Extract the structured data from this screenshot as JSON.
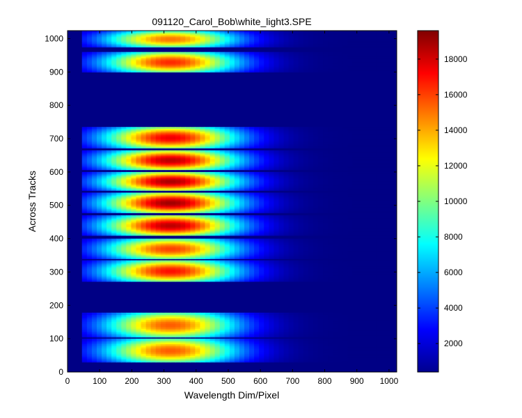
{
  "chart_data": {
    "type": "heatmap",
    "title": "091120_Carol_Bob\\white_light3.SPE",
    "xlabel": "Wavelength Dim/Pixel",
    "ylabel": "Across Tracks",
    "xlim": [
      0,
      1024
    ],
    "ylim": [
      0,
      1024
    ],
    "x_ticks": [
      0,
      100,
      200,
      300,
      400,
      500,
      600,
      700,
      800,
      900,
      1000
    ],
    "y_ticks": [
      0,
      100,
      200,
      300,
      400,
      500,
      600,
      700,
      800,
      900,
      1000
    ],
    "colormap": "jet",
    "colorbar": {
      "range": [
        400,
        19600
      ],
      "ticks": [
        2000,
        4000,
        6000,
        8000,
        10000,
        12000,
        14000,
        16000,
        18000
      ]
    },
    "background_value": 500,
    "signal_x_range": [
      45,
      1024
    ],
    "peak_x": 320,
    "tracks": [
      {
        "y_start": 30,
        "y_end": 100,
        "peak": 15500
      },
      {
        "y_start": 105,
        "y_end": 178,
        "peak": 15500
      },
      {
        "y_start": 272,
        "y_end": 335,
        "peak": 17000
      },
      {
        "y_start": 340,
        "y_end": 400,
        "peak": 16000
      },
      {
        "y_start": 410,
        "y_end": 470,
        "peak": 18500
      },
      {
        "y_start": 478,
        "y_end": 538,
        "peak": 19000
      },
      {
        "y_start": 545,
        "y_end": 600,
        "peak": 18800
      },
      {
        "y_start": 607,
        "y_end": 665,
        "peak": 18500
      },
      {
        "y_start": 672,
        "y_end": 735,
        "peak": 17500
      },
      {
        "y_start": 900,
        "y_end": 960,
        "peak": 16500
      },
      {
        "y_start": 975,
        "y_end": 1024,
        "peak": 15000
      }
    ]
  }
}
